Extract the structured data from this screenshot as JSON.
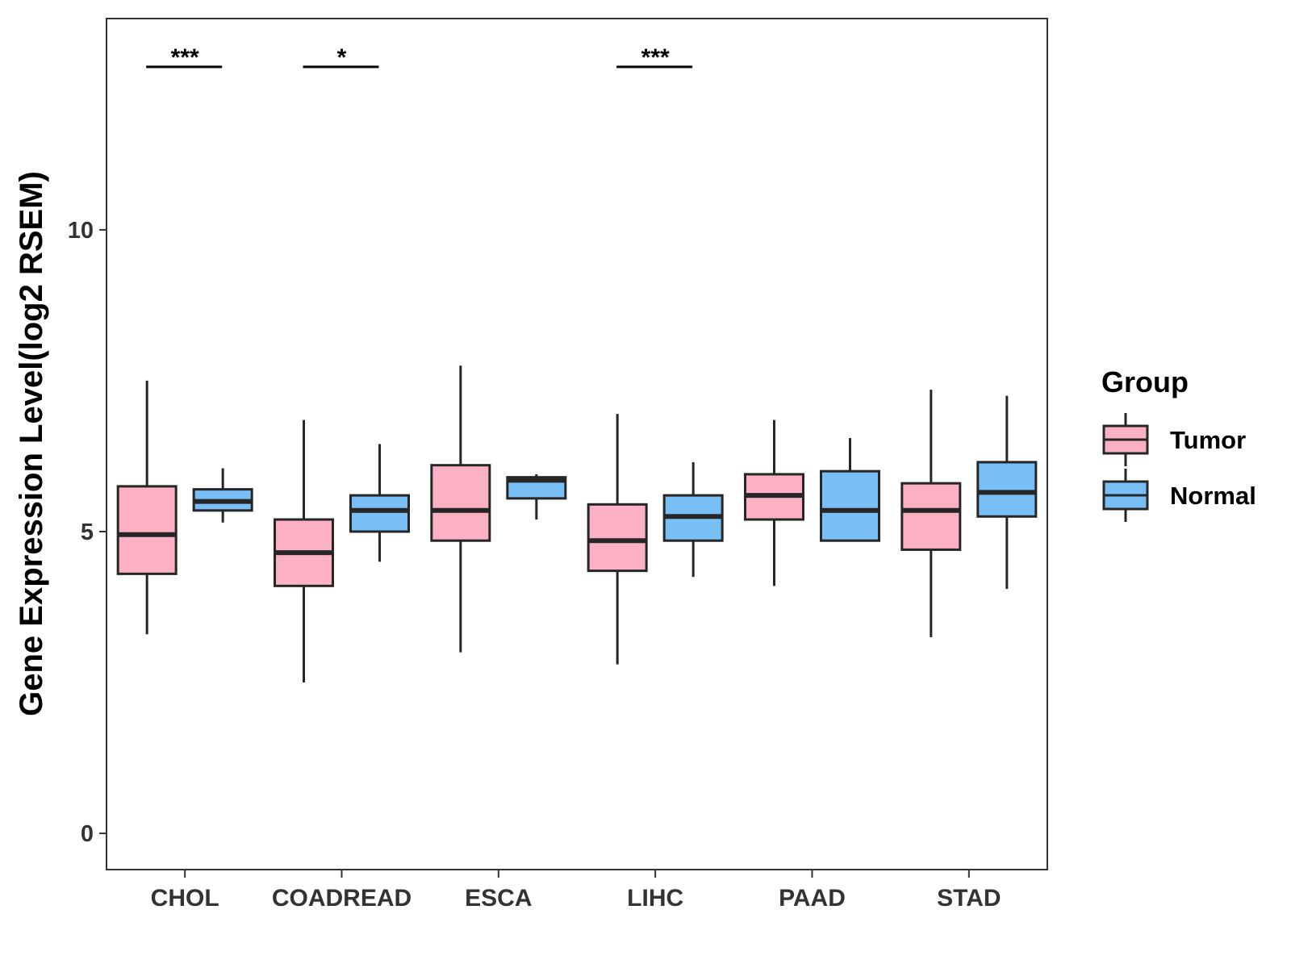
{
  "chart_data": {
    "type": "boxplot",
    "title": "",
    "xlabel": "",
    "ylabel": "Gene Expression Level(log2 RSEM)",
    "ylim": [
      -0.6,
      13.5
    ],
    "yticks": [
      0,
      5,
      10
    ],
    "ytick_labels": [
      "0",
      "5",
      "10"
    ],
    "grid": false,
    "legend": {
      "title": "Group",
      "position": "right",
      "entries": [
        {
          "name": "Tumor",
          "color": "#FBB1C3"
        },
        {
          "name": "Normal",
          "color": "#79BFF5"
        }
      ]
    },
    "categories": [
      "CHOL",
      "COADREAD",
      "ESCA",
      "LIHC",
      "PAAD",
      "STAD"
    ],
    "series": [
      {
        "name": "Tumor",
        "color": "#FBB1C3",
        "boxes": [
          {
            "whislo": 3.3,
            "q1": 4.3,
            "med": 4.95,
            "q3": 5.75,
            "whishi": 7.5
          },
          {
            "whislo": 2.5,
            "q1": 4.1,
            "med": 4.65,
            "q3": 5.2,
            "whishi": 6.85
          },
          {
            "whislo": 3.0,
            "q1": 4.85,
            "med": 5.35,
            "q3": 6.1,
            "whishi": 7.75
          },
          {
            "whislo": 2.8,
            "q1": 4.35,
            "med": 4.85,
            "q3": 5.45,
            "whishi": 6.95
          },
          {
            "whislo": 4.1,
            "q1": 5.2,
            "med": 5.6,
            "q3": 5.95,
            "whishi": 6.85
          },
          {
            "whislo": 3.25,
            "q1": 4.7,
            "med": 5.35,
            "q3": 5.8,
            "whishi": 7.35
          }
        ]
      },
      {
        "name": "Normal",
        "color": "#79BFF5",
        "boxes": [
          {
            "whislo": 5.15,
            "q1": 5.35,
            "med": 5.5,
            "q3": 5.7,
            "whishi": 6.05
          },
          {
            "whislo": 4.5,
            "q1": 5.0,
            "med": 5.35,
            "q3": 5.6,
            "whishi": 6.45
          },
          {
            "whislo": 5.2,
            "q1": 5.55,
            "med": 5.85,
            "q3": 5.9,
            "whishi": 5.95
          },
          {
            "whislo": 4.25,
            "q1": 4.85,
            "med": 5.25,
            "q3": 5.6,
            "whishi": 6.15
          },
          {
            "whislo": 4.85,
            "q1": 4.85,
            "med": 5.35,
            "q3": 6.0,
            "whishi": 6.55
          },
          {
            "whislo": 4.05,
            "q1": 5.25,
            "med": 5.65,
            "q3": 6.15,
            "whishi": 7.25
          }
        ]
      }
    ],
    "significance": [
      {
        "category": "CHOL",
        "label": "***"
      },
      {
        "category": "COADREAD",
        "label": "*"
      },
      {
        "category": "LIHC",
        "label": "***"
      }
    ],
    "significance_y": 12.7
  }
}
